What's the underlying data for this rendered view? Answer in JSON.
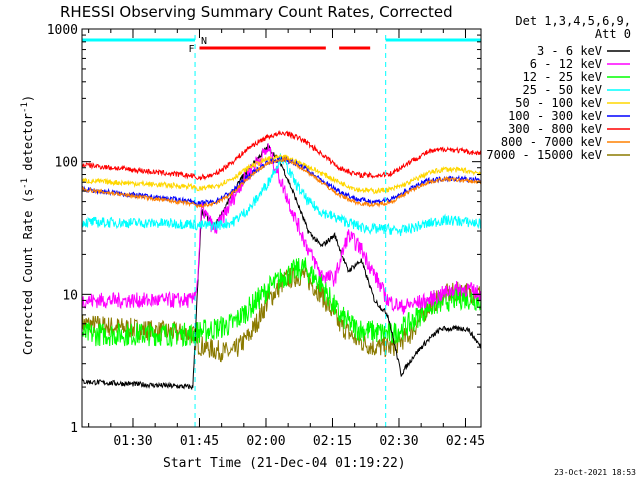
{
  "chart_data": {
    "type": "line",
    "title": "RHESSI Observing Summary Count Rates, Corrected",
    "xlabel": "Start Time (21-Dec-04 01:19:22)",
    "ylabel_main": "Corrected Count Rate (s",
    "ylabel_sup1": "-1",
    "ylabel_mid": " detector",
    "ylabel_sup2": "-1",
    "ylabel_end": ")",
    "yscale": "log",
    "ylim": [
      1,
      1000
    ],
    "xlim_minutes": [
      0,
      90
    ],
    "ytick_values": [
      1,
      10,
      100,
      1000
    ],
    "ytick_labels": [
      "1",
      "10",
      "100",
      "1000"
    ],
    "xtick_minutes": [
      11.5,
      26.5,
      41.5,
      56.5,
      71.5,
      86.5
    ],
    "xtick_labels": [
      "01:30",
      "01:45",
      "02:00",
      "02:15",
      "02:30",
      "02:45"
    ],
    "legend_header": "Det 1,3,4,5,6,9,",
    "legend_header2": "Att 0",
    "legend_placement": "right",
    "timestamp": "23-Oct-2021 18:53",
    "annotations": {
      "flare_flag": "F",
      "night_flag": "N"
    },
    "night_intervals_minutes": [
      [
        0,
        25.5
      ],
      [
        68.5,
        90
      ]
    ],
    "flare_intervals_minutes": [
      [
        26.5,
        55
      ],
      [
        58,
        65
      ]
    ],
    "series": [
      {
        "name": "3 - 6 keV",
        "color": "#000000",
        "x": [
          0,
          25,
          26,
          27,
          30,
          33,
          36,
          39,
          42,
          45,
          48,
          51,
          54,
          57,
          60,
          63,
          66,
          69,
          72,
          75,
          78,
          81,
          84,
          87,
          90
        ],
        "y": [
          2.2,
          2.0,
          10,
          42,
          33,
          50,
          75,
          100,
          130,
          95,
          55,
          30,
          23,
          28,
          15,
          18,
          9,
          7,
          2.5,
          3.5,
          4.5,
          5.5,
          5.5,
          5.5,
          4
        ]
      },
      {
        "name": "6 - 12 keV",
        "color": "#ff00ff",
        "x": [
          0,
          25,
          26,
          27,
          30,
          33,
          36,
          39,
          42,
          45,
          48,
          51,
          54,
          57,
          60,
          63,
          66,
          69,
          72,
          75,
          78,
          81,
          84,
          87,
          90
        ],
        "y": [
          9,
          9,
          12,
          45,
          30,
          45,
          70,
          95,
          125,
          70,
          38,
          22,
          14,
          13,
          28,
          22,
          14,
          9,
          8,
          8.5,
          9,
          10,
          11,
          11,
          10
        ]
      },
      {
        "name": "12 - 25 keV",
        "color": "#00ff00",
        "x": [
          0,
          25,
          26,
          30,
          34,
          38,
          42,
          46,
          50,
          54,
          58,
          62,
          66,
          70,
          74,
          78,
          82,
          86,
          90
        ],
        "y": [
          5,
          5,
          5.2,
          5.5,
          6,
          8,
          11,
          14,
          16,
          12,
          7,
          5.5,
          5.2,
          5,
          6,
          8,
          9,
          9.5,
          9
        ]
      },
      {
        "name": "25 - 50 keV",
        "color": "#00ffff",
        "x": [
          0,
          25,
          26,
          30,
          34,
          38,
          42,
          45,
          48,
          51,
          54,
          57,
          60,
          63,
          66,
          69,
          72,
          75,
          78,
          81,
          84,
          87,
          90
        ],
        "y": [
          35,
          34,
          33,
          33,
          35,
          45,
          70,
          110,
          70,
          50,
          42,
          38,
          35,
          32,
          31,
          31,
          30,
          32,
          34,
          36,
          36,
          35,
          34
        ]
      },
      {
        "name": "50 - 100 keV",
        "color": "#ffd700",
        "x": [
          0,
          25,
          26,
          30,
          34,
          38,
          42,
          46,
          50,
          54,
          58,
          62,
          66,
          70,
          74,
          78,
          82,
          86,
          90
        ],
        "y": [
          72,
          65,
          62,
          65,
          75,
          92,
          105,
          108,
          95,
          82,
          70,
          62,
          60,
          62,
          70,
          82,
          88,
          86,
          82
        ]
      },
      {
        "name": "100 - 300 keV",
        "color": "#0000ff",
        "x": [
          0,
          25,
          26,
          30,
          34,
          38,
          42,
          46,
          50,
          54,
          58,
          62,
          66,
          70,
          74,
          78,
          82,
          86,
          90
        ],
        "y": [
          62,
          50,
          48,
          50,
          60,
          80,
          100,
          105,
          90,
          72,
          60,
          52,
          50,
          52,
          62,
          72,
          75,
          74,
          72
        ]
      },
      {
        "name": "300 - 800 keV",
        "color": "#ff0000",
        "x": [
          0,
          25,
          26,
          30,
          34,
          38,
          42,
          46,
          50,
          54,
          58,
          62,
          66,
          70,
          74,
          78,
          82,
          86,
          90
        ],
        "y": [
          95,
          78,
          75,
          80,
          100,
          130,
          155,
          165,
          145,
          115,
          90,
          80,
          78,
          82,
          100,
          118,
          125,
          120,
          115
        ]
      },
      {
        "name": "800 - 7000 keV",
        "color": "#ff8000",
        "x": [
          0,
          25,
          26,
          30,
          34,
          38,
          42,
          46,
          50,
          54,
          58,
          62,
          66,
          70,
          74,
          78,
          82,
          86,
          90
        ],
        "y": [
          62,
          48,
          46,
          48,
          58,
          78,
          98,
          104,
          88,
          70,
          56,
          49,
          47,
          50,
          60,
          70,
          74,
          72,
          70
        ]
      },
      {
        "name": "7000 - 15000 keV",
        "color": "#8b7a00",
        "x": [
          0,
          25,
          26,
          30,
          34,
          38,
          42,
          46,
          50,
          54,
          58,
          62,
          66,
          70,
          74,
          78,
          82,
          86,
          90
        ],
        "y": [
          6,
          5,
          4.2,
          3.8,
          3.6,
          5,
          9,
          13,
          14,
          10,
          6,
          4.5,
          4,
          4,
          5,
          8,
          10,
          10.5,
          10
        ]
      }
    ]
  }
}
